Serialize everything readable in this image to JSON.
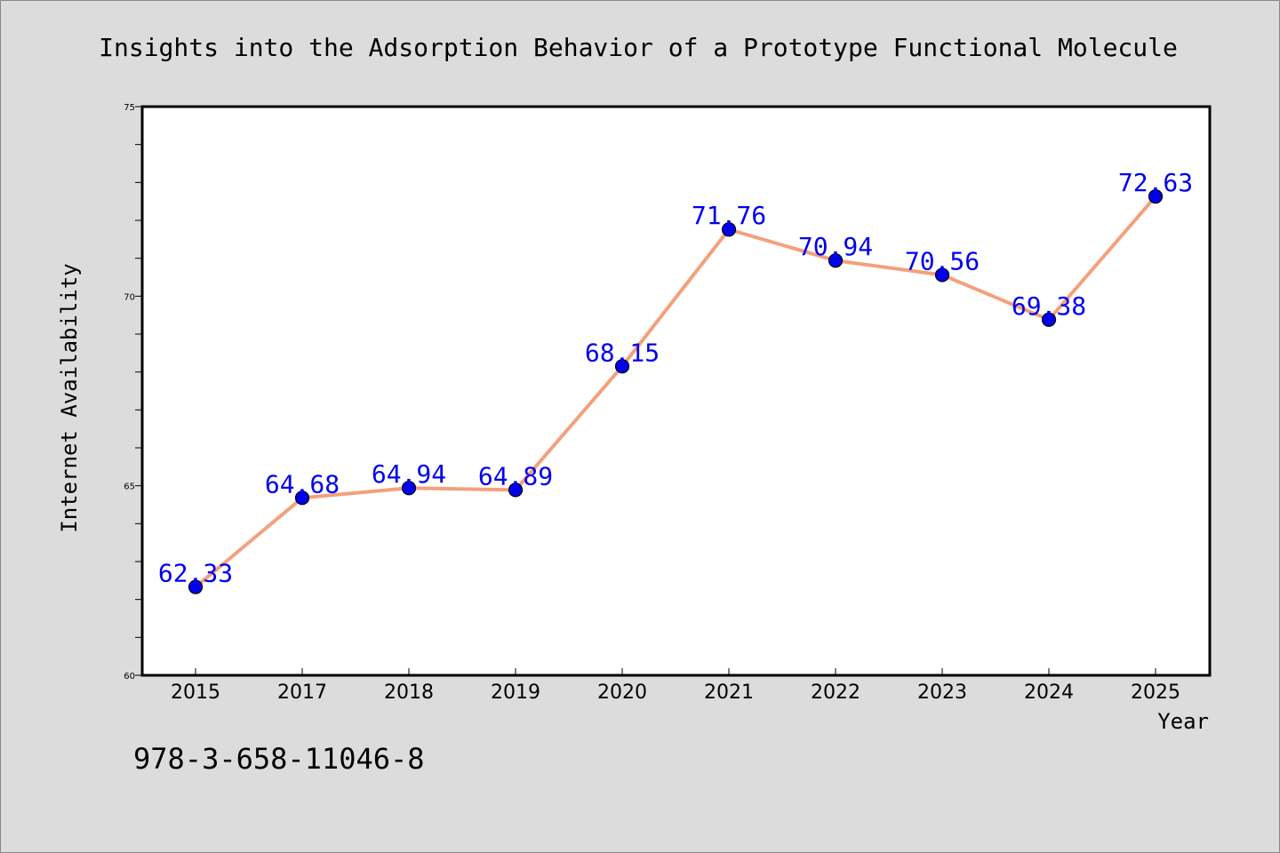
{
  "chart_data": {
    "type": "line",
    "title": "Insights into the Adsorption Behavior of a Prototype Functional Molecule",
    "xlabel": "Year",
    "ylabel": "Internet Availability",
    "categories": [
      "2015",
      "2017",
      "2018",
      "2019",
      "2020",
      "2021",
      "2022",
      "2023",
      "2024",
      "2025"
    ],
    "series": [
      {
        "values": [
          62.33,
          64.68,
          64.94,
          64.89,
          68.15,
          71.76,
          70.94,
          70.56,
          69.38,
          72.63
        ]
      }
    ],
    "data_labels": [
      "62.33",
      "64.68",
      "64.94",
      "64.89",
      "68.15",
      "71.76",
      "70.94",
      "70.56",
      "69.38",
      "72.63"
    ],
    "ylim": [
      60,
      75
    ],
    "y_ticks": [
      "60",
      "65",
      "70",
      "75"
    ],
    "grid": false,
    "legend": "none",
    "colors": {
      "line": "#f4a07c",
      "marker": "#0000ee",
      "label": "#0000ee",
      "background": "#dcdcdc",
      "plot_area": "#ffffff"
    }
  },
  "footer": {
    "isbn": "978-3-658-11046-8"
  }
}
